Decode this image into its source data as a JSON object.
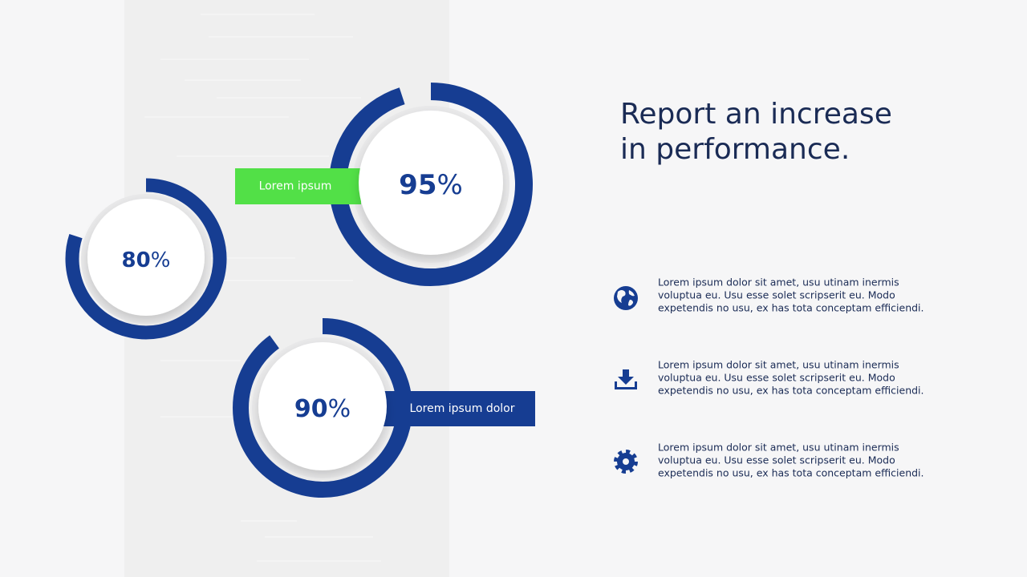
{
  "title": {
    "lines": [
      "Report an increase",
      "in performance."
    ]
  },
  "rings": [
    {
      "value": 95,
      "value_label": "95%",
      "label": "Lorem ipsum"
    },
    {
      "value": 80,
      "value_label": "80%"
    },
    {
      "value": 90,
      "value_label": "90%",
      "label": "Lorem ipsum dolor"
    }
  ],
  "items": [
    {
      "lines": [
        "Lorem ipsum dolor sit amet, usu utinam inermis",
        "voluptua eu. Usu esse solet scripserit eu. Modo",
        "expetendis no usu, ex has tota conceptam efficiendi."
      ]
    },
    {
      "lines": [
        "Lorem ipsum dolor sit amet, usu utinam inermis",
        "voluptua eu. Usu esse solet scripserit eu. Modo",
        "expetendis no usu, ex has tota conceptam efficiendi."
      ]
    },
    {
      "lines": [
        "Lorem ipsum dolor sit amet, usu utinam inermis",
        "voluptua eu. Usu esse solet scripserit eu. Modo",
        "expetendis no usu, ex has tota conceptam efficiendi."
      ]
    }
  ]
}
